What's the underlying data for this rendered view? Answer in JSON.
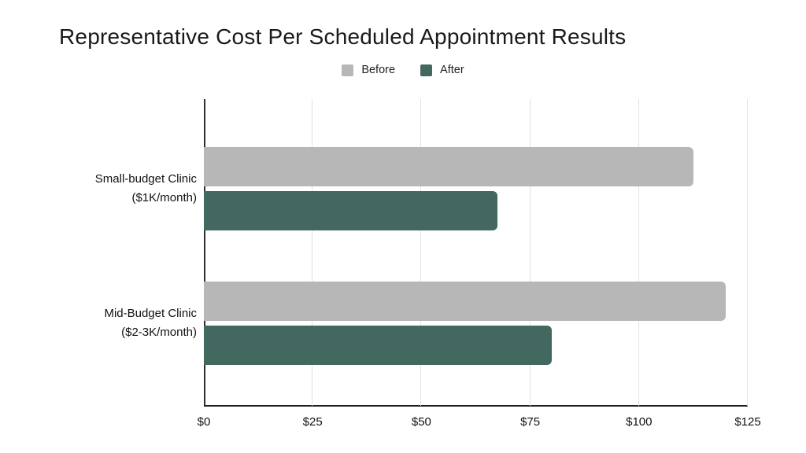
{
  "chart_data": {
    "type": "bar",
    "orientation": "horizontal",
    "title": "Representative Cost Per Scheduled Appointment Results",
    "categories": [
      [
        "Small-budget Clinic",
        "($1K/month)"
      ],
      [
        "Mid-Budget Clinic",
        "($2-3K/month)"
      ]
    ],
    "series": [
      {
        "name": "Before",
        "color": "#b7b7b7",
        "values": [
          112.5,
          120
        ]
      },
      {
        "name": "After",
        "color": "#42685f",
        "values": [
          67.5,
          80
        ]
      }
    ],
    "x_axis": {
      "min": 0,
      "max": 125,
      "tick_values": [
        0,
        25,
        50,
        75,
        100,
        125
      ],
      "tick_labels": [
        "$0",
        "$25",
        "$50",
        "$75",
        "$100",
        "$125"
      ]
    },
    "legend_position": "top-center",
    "gridlines": true,
    "background_color": "#ffffff"
  }
}
